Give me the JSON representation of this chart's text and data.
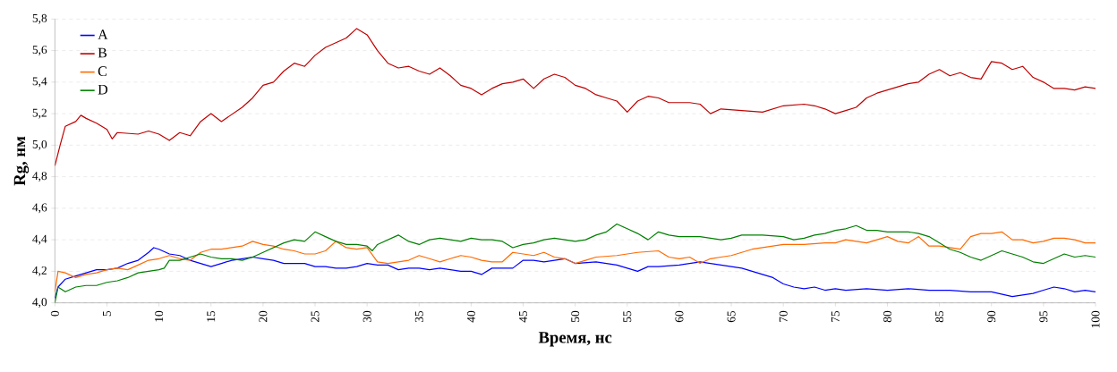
{
  "chart_data": {
    "type": "line",
    "xlabel": "Время, нс",
    "ylabel": "Rg, нм",
    "xlim": [
      0,
      100
    ],
    "xticks": [
      0,
      5,
      10,
      15,
      20,
      25,
      30,
      35,
      40,
      45,
      50,
      55,
      60,
      65,
      70,
      75,
      80,
      85,
      90,
      95,
      100
    ],
    "ylim": [
      4.0,
      5.8
    ],
    "yticks": [
      {
        "value": 4.0,
        "label": "4,0"
      },
      {
        "value": 4.2,
        "label": "4,2"
      },
      {
        "value": 4.4,
        "label": "4,4"
      },
      {
        "value": 4.6,
        "label": "4,6"
      },
      {
        "value": 4.8,
        "label": "4,8"
      },
      {
        "value": 5.0,
        "label": "5,0"
      },
      {
        "value": 5.2,
        "label": "5,2"
      },
      {
        "value": 5.4,
        "label": "5,4"
      },
      {
        "value": 5.6,
        "label": "5,6"
      },
      {
        "value": 5.8,
        "label": "5,8"
      }
    ],
    "grid": "y",
    "legend": "top left",
    "series": [
      {
        "name": "A",
        "color": "#0000ff",
        "x": [
          0,
          0.3,
          1,
          2,
          3,
          4,
          5,
          6,
          7,
          8,
          9,
          9.5,
          10,
          11,
          12,
          13,
          14,
          15,
          16,
          17,
          18,
          19,
          20,
          21,
          22,
          24,
          25,
          26,
          27,
          28,
          29,
          30,
          31,
          32,
          33,
          34,
          35,
          36,
          37,
          38,
          39,
          40,
          41,
          42,
          43,
          44,
          45,
          46,
          47,
          48,
          49,
          50,
          52,
          54,
          56,
          57,
          58,
          60,
          62,
          63,
          64,
          65,
          66,
          67,
          68,
          69,
          70,
          71,
          72,
          73,
          74,
          75,
          76,
          78,
          80,
          82,
          84,
          86,
          88,
          90,
          92,
          93,
          94,
          95,
          96,
          97,
          98,
          99,
          100
        ],
        "values": [
          4.03,
          4.1,
          4.15,
          4.17,
          4.19,
          4.21,
          4.21,
          4.22,
          4.25,
          4.27,
          4.32,
          4.35,
          4.34,
          4.31,
          4.3,
          4.27,
          4.25,
          4.23,
          4.25,
          4.27,
          4.28,
          4.29,
          4.28,
          4.27,
          4.25,
          4.25,
          4.23,
          4.23,
          4.22,
          4.22,
          4.23,
          4.25,
          4.24,
          4.24,
          4.21,
          4.22,
          4.22,
          4.21,
          4.22,
          4.21,
          4.2,
          4.2,
          4.18,
          4.22,
          4.22,
          4.22,
          4.27,
          4.27,
          4.26,
          4.27,
          4.28,
          4.25,
          4.26,
          4.24,
          4.2,
          4.23,
          4.23,
          4.24,
          4.26,
          4.25,
          4.24,
          4.23,
          4.22,
          4.2,
          4.18,
          4.16,
          4.12,
          4.1,
          4.09,
          4.1,
          4.08,
          4.09,
          4.08,
          4.09,
          4.08,
          4.09,
          4.08,
          4.08,
          4.07,
          4.07,
          4.04,
          4.05,
          4.06,
          4.08,
          4.1,
          4.09,
          4.07,
          4.08,
          4.07
        ]
      },
      {
        "name": "B",
        "color": "#c00000",
        "x": [
          0,
          0.5,
          1,
          2,
          2.5,
          3,
          4,
          5,
          5.5,
          6,
          8,
          9,
          10,
          11,
          12,
          13,
          14,
          15,
          16,
          18,
          19,
          20,
          21,
          22,
          23,
          24,
          25,
          26,
          27,
          28,
          29,
          30,
          31,
          32,
          33,
          34,
          35,
          36,
          37,
          38,
          39,
          40,
          41,
          42,
          43,
          44,
          45,
          46,
          47,
          48,
          49,
          50,
          51,
          52,
          53,
          54,
          55,
          56,
          57,
          58,
          59,
          60,
          61,
          62,
          63,
          64,
          66,
          68,
          70,
          72,
          73,
          74,
          75,
          76,
          77,
          78,
          79,
          80,
          81,
          82,
          83,
          84,
          85,
          86,
          87,
          88,
          89,
          90,
          91,
          92,
          93,
          94,
          95,
          96,
          97,
          98,
          99,
          100
        ],
        "values": [
          4.87,
          5.0,
          5.12,
          5.15,
          5.19,
          5.17,
          5.14,
          5.1,
          5.04,
          5.08,
          5.07,
          5.09,
          5.07,
          5.03,
          5.08,
          5.06,
          5.15,
          5.2,
          5.15,
          5.24,
          5.3,
          5.38,
          5.4,
          5.47,
          5.52,
          5.5,
          5.57,
          5.62,
          5.65,
          5.68,
          5.74,
          5.7,
          5.6,
          5.52,
          5.49,
          5.5,
          5.47,
          5.45,
          5.49,
          5.44,
          5.38,
          5.36,
          5.32,
          5.36,
          5.39,
          5.4,
          5.42,
          5.36,
          5.42,
          5.45,
          5.43,
          5.38,
          5.36,
          5.32,
          5.3,
          5.28,
          5.21,
          5.28,
          5.31,
          5.3,
          5.27,
          5.27,
          5.27,
          5.26,
          5.2,
          5.23,
          5.22,
          5.21,
          5.25,
          5.26,
          5.25,
          5.23,
          5.2,
          5.22,
          5.24,
          5.3,
          5.33,
          5.35,
          5.37,
          5.39,
          5.4,
          5.45,
          5.48,
          5.44,
          5.46,
          5.43,
          5.42,
          5.53,
          5.52,
          5.48,
          5.5,
          5.43,
          5.4,
          5.36,
          5.36,
          5.35,
          5.37,
          5.36
        ]
      },
      {
        "name": "C",
        "color": "#ff6a00",
        "x": [
          0,
          0.3,
          1,
          2,
          3,
          4,
          5,
          6,
          7,
          8,
          9,
          10,
          11,
          12,
          13,
          14,
          15,
          16,
          17,
          18,
          19,
          20,
          21,
          22,
          23,
          24,
          25,
          26,
          27,
          28,
          29,
          30,
          31,
          32,
          33,
          34,
          35,
          36,
          37,
          38,
          39,
          40,
          41,
          42,
          43,
          44,
          45,
          46,
          47,
          48,
          49,
          50,
          51,
          52,
          54,
          56,
          58,
          59,
          60,
          61,
          62,
          63,
          64,
          65,
          66,
          67,
          68,
          70,
          72,
          74,
          75,
          76,
          78,
          80,
          81,
          82,
          83,
          84,
          85,
          86,
          87,
          88,
          89,
          90,
          91,
          92,
          93,
          94,
          95,
          96,
          97,
          98,
          99,
          100
        ],
        "values": [
          4.07,
          4.2,
          4.19,
          4.16,
          4.18,
          4.19,
          4.21,
          4.22,
          4.21,
          4.24,
          4.27,
          4.28,
          4.3,
          4.28,
          4.27,
          4.32,
          4.34,
          4.34,
          4.35,
          4.36,
          4.39,
          4.37,
          4.36,
          4.34,
          4.33,
          4.31,
          4.31,
          4.33,
          4.39,
          4.35,
          4.34,
          4.35,
          4.26,
          4.25,
          4.26,
          4.27,
          4.3,
          4.28,
          4.26,
          4.28,
          4.3,
          4.29,
          4.27,
          4.26,
          4.26,
          4.32,
          4.31,
          4.3,
          4.32,
          4.29,
          4.28,
          4.25,
          4.27,
          4.29,
          4.3,
          4.32,
          4.33,
          4.29,
          4.28,
          4.29,
          4.25,
          4.28,
          4.29,
          4.3,
          4.32,
          4.34,
          4.35,
          4.37,
          4.37,
          4.38,
          4.38,
          4.4,
          4.38,
          4.42,
          4.39,
          4.38,
          4.42,
          4.36,
          4.36,
          4.35,
          4.34,
          4.42,
          4.44,
          4.44,
          4.45,
          4.4,
          4.4,
          4.38,
          4.39,
          4.41,
          4.41,
          4.4,
          4.38,
          4.38
        ]
      },
      {
        "name": "D",
        "color": "#008000",
        "x": [
          0,
          0.3,
          1,
          2,
          3,
          4,
          5,
          6,
          7,
          8,
          9,
          10,
          10.5,
          11,
          12,
          13,
          14,
          15,
          16,
          17,
          18,
          19,
          20,
          21,
          22,
          23,
          24,
          25,
          26,
          27,
          28,
          29,
          30,
          30.5,
          31,
          32,
          33,
          34,
          35,
          36,
          37,
          38,
          39,
          40,
          41,
          42,
          43,
          44,
          45,
          46,
          47,
          48,
          49,
          50,
          51,
          52,
          53,
          54,
          55,
          56,
          57,
          58,
          59,
          60,
          62,
          64,
          65,
          66,
          68,
          70,
          71,
          72,
          73,
          74,
          75,
          76,
          77,
          78,
          79,
          80,
          82,
          83,
          84,
          85,
          86,
          87,
          88,
          89,
          90,
          91,
          92,
          93,
          94,
          95,
          96,
          97,
          98,
          99,
          100
        ],
        "values": [
          4.0,
          4.1,
          4.07,
          4.1,
          4.11,
          4.11,
          4.13,
          4.14,
          4.16,
          4.19,
          4.2,
          4.21,
          4.22,
          4.27,
          4.27,
          4.29,
          4.31,
          4.29,
          4.28,
          4.28,
          4.27,
          4.29,
          4.32,
          4.35,
          4.38,
          4.4,
          4.39,
          4.45,
          4.42,
          4.39,
          4.37,
          4.37,
          4.36,
          4.33,
          4.37,
          4.4,
          4.43,
          4.39,
          4.37,
          4.4,
          4.41,
          4.4,
          4.39,
          4.41,
          4.4,
          4.4,
          4.39,
          4.35,
          4.37,
          4.38,
          4.4,
          4.41,
          4.4,
          4.39,
          4.4,
          4.43,
          4.45,
          4.5,
          4.47,
          4.44,
          4.4,
          4.45,
          4.43,
          4.42,
          4.42,
          4.4,
          4.41,
          4.43,
          4.43,
          4.42,
          4.4,
          4.41,
          4.43,
          4.44,
          4.46,
          4.47,
          4.49,
          4.46,
          4.46,
          4.45,
          4.45,
          4.44,
          4.42,
          4.38,
          4.34,
          4.32,
          4.29,
          4.27,
          4.3,
          4.33,
          4.31,
          4.29,
          4.26,
          4.25,
          4.28,
          4.31,
          4.29,
          4.3,
          4.29
        ]
      }
    ]
  }
}
